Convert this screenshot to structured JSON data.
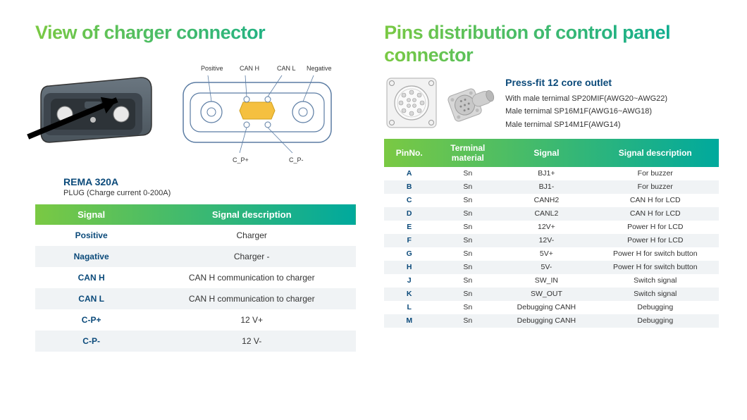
{
  "left": {
    "title": "View of charger connector",
    "rema": {
      "name": "REMA 320A",
      "sub": "PLUG (Charge current 0-200A)"
    },
    "diagram_labels": {
      "positive": "Positive",
      "canh": "CAN H",
      "canl": "CAN L",
      "negative": "Negative",
      "cpp": "C_P+",
      "cpm": "C_P-"
    },
    "table": {
      "headers": [
        "Signal",
        "Signal description"
      ],
      "rows": [
        [
          "Positive",
          "Charger"
        ],
        [
          "Nagative",
          "Charger -"
        ],
        [
          "CAN H",
          "CAN H communication to charger"
        ],
        [
          "CAN L",
          "CAN H communication to charger"
        ],
        [
          "C-P+",
          "12 V+"
        ],
        [
          "C-P-",
          "12 V-"
        ]
      ]
    }
  },
  "right": {
    "title": "Pins distribution of control panel connector",
    "outlet": {
      "title": "Press-fit 12 core outlet",
      "lines": [
        "With male ternimal SP20MIF(AWG20~AWG22)",
        "Male ternimal SP16M1F(AWG16~AWG18)",
        "Male ternimal SP14M1F(AWG14)"
      ]
    },
    "table": {
      "headers": [
        "PinNo.",
        "Terminal material",
        "Signal",
        "Signal description"
      ],
      "rows": [
        [
          "A",
          "Sn",
          "BJ1+",
          "For buzzer"
        ],
        [
          "B",
          "Sn",
          "BJ1-",
          "For buzzer"
        ],
        [
          "C",
          "Sn",
          "CANH2",
          "CAN H for LCD"
        ],
        [
          "D",
          "Sn",
          "CANL2",
          "CAN H for LCD"
        ],
        [
          "E",
          "Sn",
          "12V+",
          "Power H for LCD"
        ],
        [
          "F",
          "Sn",
          "12V-",
          "Power H for LCD"
        ],
        [
          "G",
          "Sn",
          "5V+",
          "Power H for switch button"
        ],
        [
          "H",
          "Sn",
          "5V-",
          "Power H for switch button"
        ],
        [
          "J",
          "Sn",
          "SW_IN",
          "Switch signal"
        ],
        [
          "K",
          "Sn",
          "SW_OUT",
          "Switch signal"
        ],
        [
          "L",
          "Sn",
          "Debugging CANH",
          "Debugging"
        ],
        [
          "M",
          "Sn",
          "Debugging CANH",
          "Debugging"
        ]
      ]
    }
  },
  "colors": {
    "grad_start": "#7ac943",
    "grad_end": "#00a99d",
    "brand_blue": "#0b4a7a",
    "row_alt": "#f0f3f5",
    "text": "#333333",
    "connector_body": "#5a6670",
    "connector_dark": "#3d454d",
    "pin_light": "#e8e8e8",
    "diagram_stroke": "#5b7ca3"
  }
}
